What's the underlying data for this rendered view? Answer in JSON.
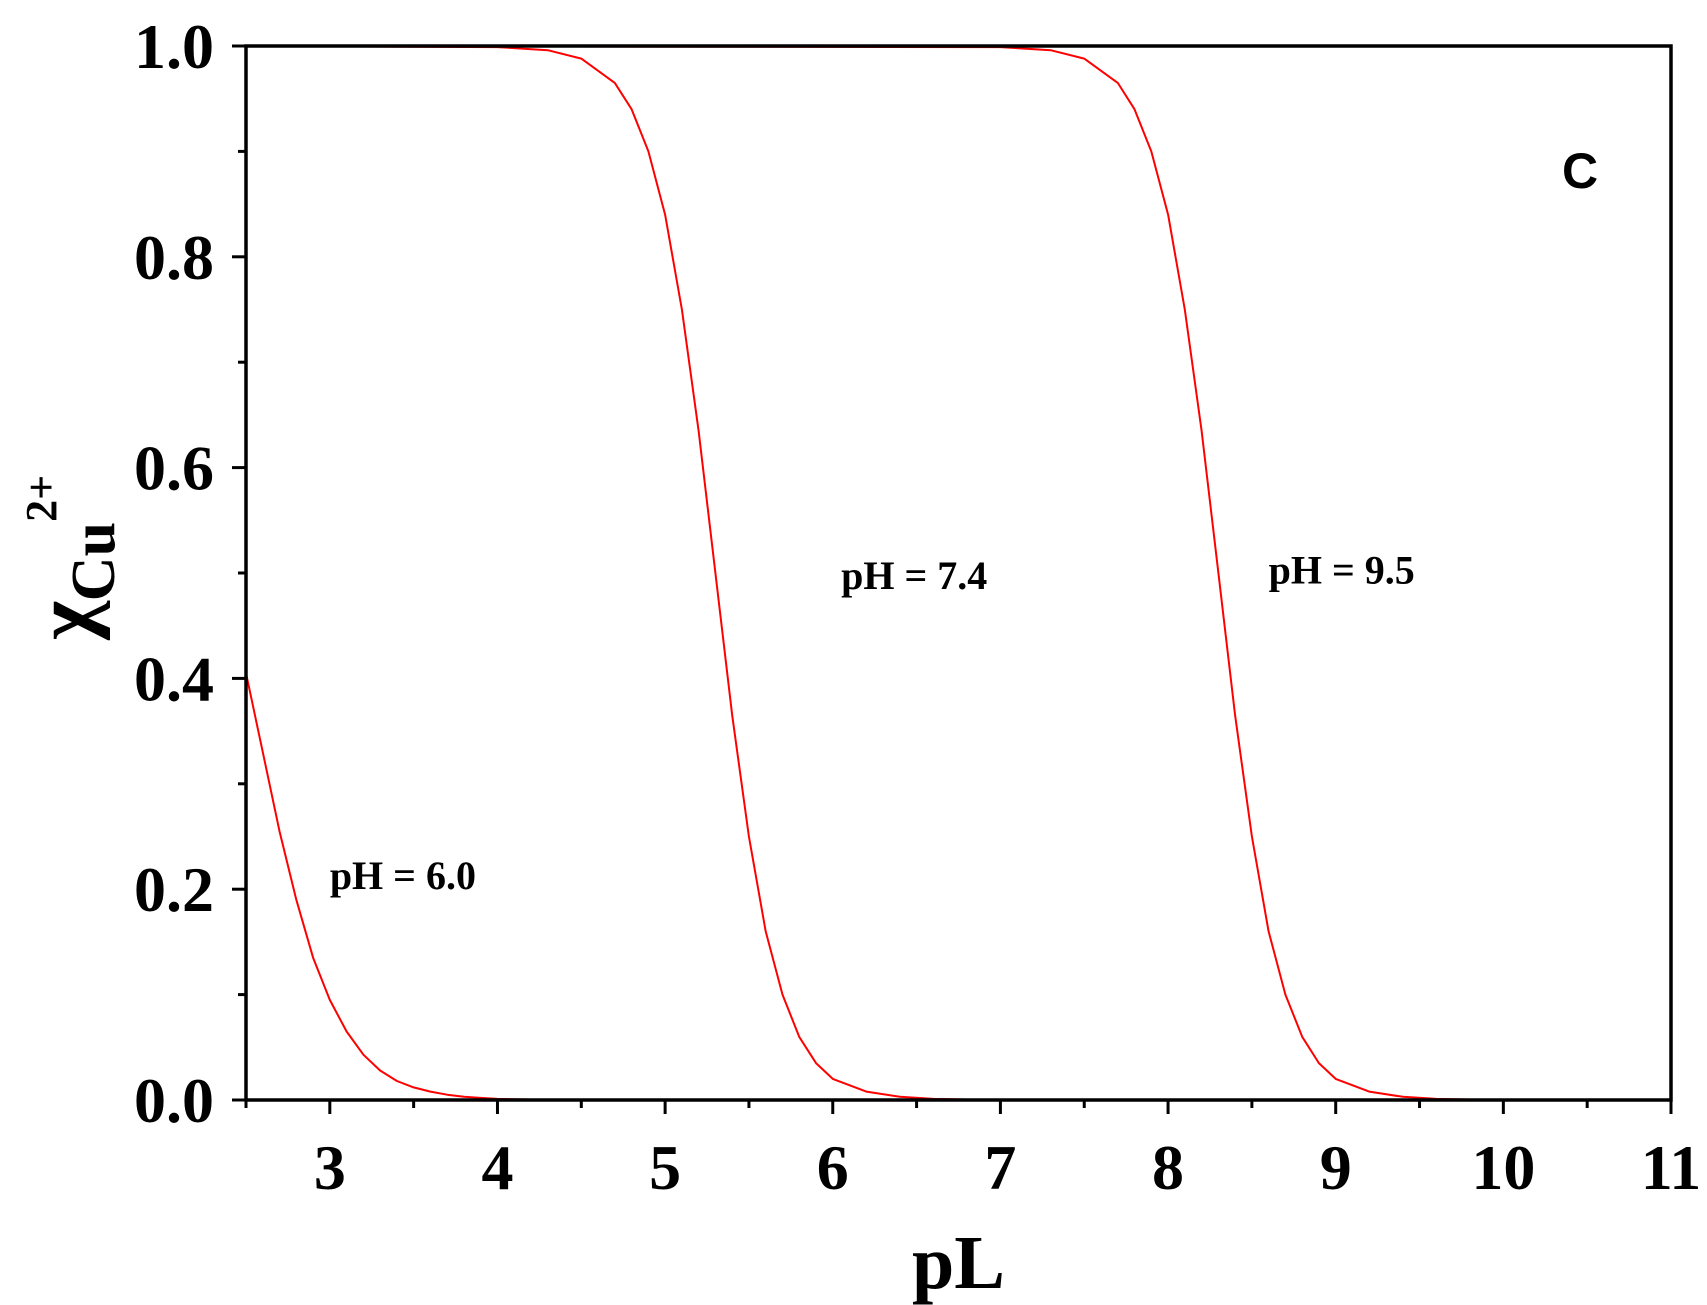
{
  "chart_data": {
    "type": "line",
    "panel_label": "C",
    "xlabel": "pL",
    "ylabel": {
      "base": "χ",
      "subscript": "Cu",
      "superscript": "2+"
    },
    "xlim": [
      2.5,
      11
    ],
    "ylim": [
      0,
      1
    ],
    "x_ticks": [
      3,
      4,
      5,
      6,
      7,
      8,
      9,
      10,
      11
    ],
    "y_ticks": [
      0.0,
      0.2,
      0.4,
      0.6,
      0.8,
      1.0
    ],
    "x_tick_labels": [
      "3",
      "4",
      "5",
      "6",
      "7",
      "8",
      "9",
      "10",
      "11"
    ],
    "y_tick_labels": [
      "0.0",
      "0.2",
      "0.4",
      "0.6",
      "0.8",
      "1.0"
    ],
    "grid": false,
    "line_color": "#ff0000",
    "series": [
      {
        "label": "pH = 6.0",
        "x": [
          2.5,
          2.6,
          2.7,
          2.8,
          2.9,
          3.0,
          3.1,
          3.2,
          3.3,
          3.4,
          3.5,
          3.6,
          3.7,
          3.8,
          3.9,
          4.0,
          4.2,
          4.5,
          5.0,
          11.0
        ],
        "y": [
          0.405,
          0.33,
          0.255,
          0.19,
          0.135,
          0.095,
          0.065,
          0.043,
          0.028,
          0.018,
          0.012,
          0.008,
          0.005,
          0.003,
          0.002,
          0.001,
          0.0005,
          0.0,
          0.0,
          0.0
        ]
      },
      {
        "label": "pH = 7.4",
        "x": [
          2.5,
          4.0,
          4.3,
          4.5,
          4.7,
          4.8,
          4.9,
          5.0,
          5.1,
          5.2,
          5.3,
          5.4,
          5.5,
          5.6,
          5.7,
          5.8,
          5.9,
          6.0,
          6.2,
          6.4,
          6.6,
          6.8,
          7.0,
          11.0
        ],
        "y": [
          1.0,
          0.999,
          0.996,
          0.988,
          0.965,
          0.94,
          0.9,
          0.84,
          0.75,
          0.635,
          0.5,
          0.365,
          0.25,
          0.16,
          0.1,
          0.06,
          0.035,
          0.02,
          0.008,
          0.003,
          0.001,
          0.0005,
          0.0,
          0.0
        ]
      },
      {
        "label": "pH = 9.5",
        "x": [
          2.5,
          7.0,
          7.3,
          7.5,
          7.7,
          7.8,
          7.9,
          8.0,
          8.1,
          8.2,
          8.3,
          8.4,
          8.5,
          8.6,
          8.7,
          8.8,
          8.9,
          9.0,
          9.2,
          9.4,
          9.6,
          9.8,
          10.0,
          11.0
        ],
        "y": [
          1.0,
          0.999,
          0.996,
          0.988,
          0.965,
          0.94,
          0.9,
          0.84,
          0.75,
          0.635,
          0.5,
          0.365,
          0.25,
          0.16,
          0.1,
          0.06,
          0.035,
          0.02,
          0.008,
          0.003,
          0.001,
          0.0005,
          0.0,
          0.0
        ]
      }
    ],
    "annotations": [
      {
        "text": "pH = 6.0",
        "x": 3.0,
        "y": 0.2
      },
      {
        "text": "pH = 7.4",
        "x": 6.05,
        "y": 0.485
      },
      {
        "text": "pH = 9.5",
        "x": 8.6,
        "y": 0.49
      }
    ]
  }
}
